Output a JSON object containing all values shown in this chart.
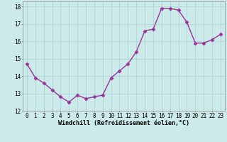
{
  "x": [
    0,
    1,
    2,
    3,
    4,
    5,
    6,
    7,
    8,
    9,
    10,
    11,
    12,
    13,
    14,
    15,
    16,
    17,
    18,
    19,
    20,
    21,
    22,
    23
  ],
  "y": [
    14.7,
    13.9,
    13.6,
    13.2,
    12.8,
    12.5,
    12.9,
    12.7,
    12.8,
    12.9,
    13.9,
    14.3,
    14.7,
    15.4,
    16.6,
    16.7,
    17.9,
    17.9,
    17.8,
    17.1,
    15.9,
    15.9,
    16.1,
    16.4
  ],
  "line_color": "#993399",
  "marker": "D",
  "markersize": 2.5,
  "linewidth": 1.0,
  "bg_color": "#cceaea",
  "grid_color": "#aad5d5",
  "xlabel": "Windchill (Refroidissement éolien,°C)",
  "xlabel_fontsize": 6.0,
  "xlim": [
    -0.5,
    23.5
  ],
  "ylim": [
    12,
    18.3
  ],
  "yticks": [
    12,
    13,
    14,
    15,
    16,
    17,
    18
  ],
  "xticks": [
    0,
    1,
    2,
    3,
    4,
    5,
    6,
    7,
    8,
    9,
    10,
    11,
    12,
    13,
    14,
    15,
    16,
    17,
    18,
    19,
    20,
    21,
    22,
    23
  ],
  "tick_fontsize": 5.5,
  "figsize": [
    3.2,
    2.0
  ],
  "dpi": 100
}
